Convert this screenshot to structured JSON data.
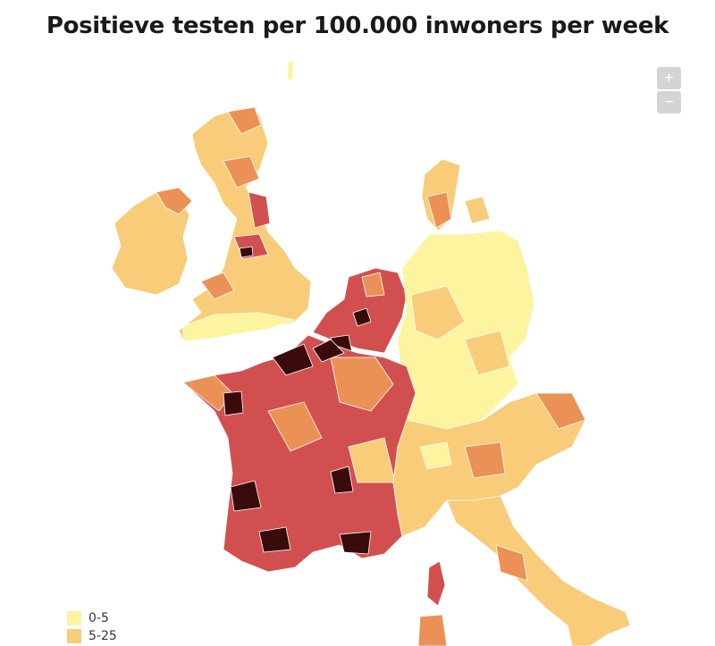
{
  "title": "Positieve testen per 100.000 inwoners per week",
  "zoom": {
    "in": "+",
    "out": "−"
  },
  "legend": [
    {
      "label": "0-5",
      "color": "#fcf49e"
    },
    {
      "label": "5-25",
      "color": "#f8cc78"
    }
  ]
}
